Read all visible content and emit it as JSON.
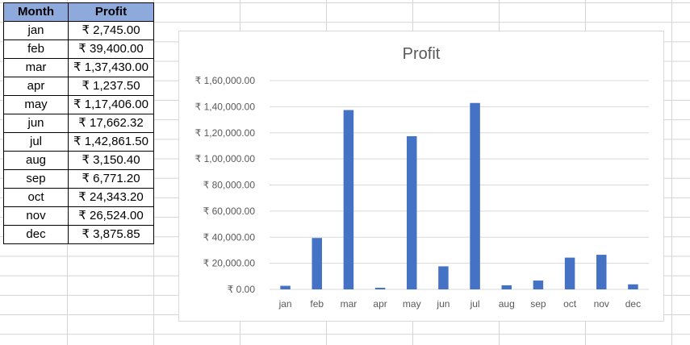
{
  "table": {
    "headers": [
      "Month",
      "Profit"
    ],
    "rows": [
      [
        "jan",
        "₹ 2,745.00"
      ],
      [
        "feb",
        "₹ 39,400.00"
      ],
      [
        "mar",
        "₹ 1,37,430.00"
      ],
      [
        "apr",
        "₹ 1,237.50"
      ],
      [
        "may",
        "₹ 1,17,406.00"
      ],
      [
        "jun",
        "₹ 17,662.32"
      ],
      [
        "jul",
        "₹ 1,42,861.50"
      ],
      [
        "aug",
        "₹ 3,150.40"
      ],
      [
        "sep",
        "₹ 6,771.20"
      ],
      [
        "oct",
        "₹ 24,343.20"
      ],
      [
        "nov",
        "₹ 26,524.00"
      ],
      [
        "dec",
        "₹ 3,875.85"
      ]
    ]
  },
  "colors": {
    "bar": "#4472c4",
    "header_fill": "#8ea9db",
    "gridline": "#d9d9d9"
  },
  "chart_data": {
    "type": "bar",
    "title": "Profit",
    "xlabel": "",
    "ylabel": "",
    "categories": [
      "jan",
      "feb",
      "mar",
      "apr",
      "may",
      "jun",
      "jul",
      "aug",
      "sep",
      "oct",
      "nov",
      "dec"
    ],
    "values": [
      2745.0,
      39400.0,
      137430.0,
      1237.5,
      117406.0,
      17662.32,
      142861.5,
      3150.4,
      6771.2,
      24343.2,
      26524.0,
      3875.85
    ],
    "ylim": [
      0,
      160000
    ],
    "yticks": [
      0,
      20000,
      40000,
      60000,
      80000,
      100000,
      120000,
      140000,
      160000
    ],
    "ytick_labels": [
      "₹ 0.00",
      "₹ 20,000.00",
      "₹ 40,000.00",
      "₹ 60,000.00",
      "₹ 80,000.00",
      "₹ 1,00,000.00",
      "₹ 1,20,000.00",
      "₹ 1,40,000.00",
      "₹ 1,60,000.00"
    ],
    "grid": true,
    "legend": "none"
  }
}
